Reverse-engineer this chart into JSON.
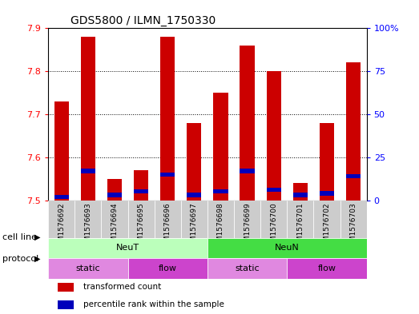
{
  "title": "GDS5800 / ILMN_1750330",
  "samples": [
    "GSM1576692",
    "GSM1576693",
    "GSM1576694",
    "GSM1576695",
    "GSM1576696",
    "GSM1576697",
    "GSM1576698",
    "GSM1576699",
    "GSM1576700",
    "GSM1576701",
    "GSM1576702",
    "GSM1576703"
  ],
  "red_values": [
    7.73,
    7.88,
    7.55,
    7.57,
    7.88,
    7.68,
    7.75,
    7.86,
    7.8,
    7.54,
    7.68,
    7.82
  ],
  "blue_values": [
    2.0,
    17.0,
    3.0,
    5.0,
    15.0,
    3.0,
    5.0,
    17.0,
    6.0,
    3.0,
    4.0,
    14.0
  ],
  "ylim_left": [
    7.5,
    7.9
  ],
  "ylim_right": [
    0,
    100
  ],
  "yticks_left": [
    7.5,
    7.6,
    7.7,
    7.8,
    7.9
  ],
  "yticks_right": [
    0,
    25,
    50,
    75,
    100
  ],
  "ytick_right_labels": [
    "0",
    "25",
    "50",
    "75",
    "100%"
  ],
  "bar_width": 0.55,
  "red_color": "#cc0000",
  "blue_color": "#0000bb",
  "base_value": 7.5,
  "cell_line_data": [
    {
      "label": "NeuT",
      "start": 0,
      "end": 6,
      "color": "#bbffbb"
    },
    {
      "label": "NeuN",
      "start": 6,
      "end": 12,
      "color": "#44dd44"
    }
  ],
  "protocol_data": [
    {
      "label": "static",
      "start": 0,
      "end": 3,
      "color": "#e088e0"
    },
    {
      "label": "flow",
      "start": 3,
      "end": 6,
      "color": "#cc44cc"
    },
    {
      "label": "static",
      "start": 6,
      "end": 9,
      "color": "#e088e0"
    },
    {
      "label": "flow",
      "start": 9,
      "end": 12,
      "color": "#cc44cc"
    }
  ],
  "legend_items": [
    {
      "label": "transformed count",
      "color": "#cc0000"
    },
    {
      "label": "percentile rank within the sample",
      "color": "#0000bb"
    }
  ],
  "cell_line_label": "cell line",
  "protocol_label": "protocol",
  "bg_color": "#ffffff",
  "tick_bg_color": "#cccccc",
  "grid_color": "#000000"
}
